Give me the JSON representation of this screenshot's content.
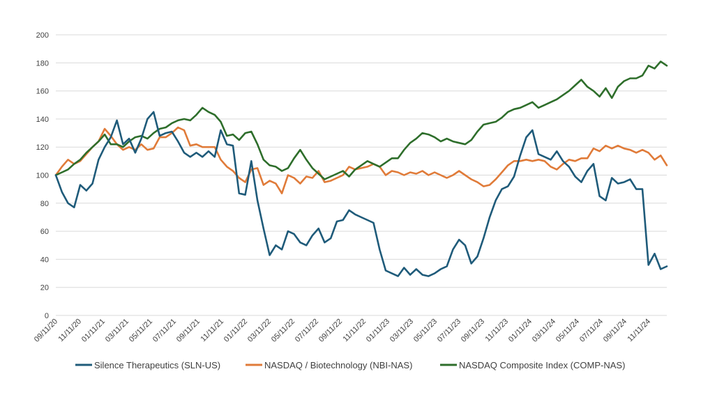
{
  "chart_data": {
    "type": "line",
    "title": "",
    "xlabel": "",
    "ylabel": "",
    "ylim": [
      0,
      200
    ],
    "yticks": [
      0,
      20,
      40,
      60,
      80,
      100,
      120,
      140,
      160,
      180,
      200
    ],
    "grid": true,
    "legend_position": "bottom",
    "x_tick_labels": [
      "09/11/20",
      "11/11/20",
      "01/11/21",
      "03/11/21",
      "05/11/21",
      "07/11/21",
      "09/11/21",
      "11/11/21",
      "01/11/22",
      "03/11/22",
      "05/11/22",
      "07/11/22",
      "09/11/22",
      "11/11/22",
      "01/11/23",
      "03/11/23",
      "05/11/23",
      "07/11/23",
      "09/11/23",
      "11/11/23",
      "01/11/24",
      "03/11/24",
      "05/11/24",
      "07/11/24",
      "09/11/24",
      "11/11/24"
    ],
    "series": [
      {
        "name": "Silence Therapeutics (SLN-US)",
        "color": "#1f5b7a",
        "values": [
          100,
          88,
          80,
          77,
          93,
          89,
          94,
          111,
          120,
          127,
          139,
          122,
          126,
          116,
          126,
          140,
          145,
          128,
          130,
          131,
          124,
          116,
          113,
          116,
          113,
          117,
          113,
          132,
          122,
          121,
          87,
          86,
          110,
          82,
          62,
          43,
          50,
          47,
          60,
          58,
          52,
          50,
          57,
          62,
          52,
          55,
          67,
          68,
          75,
          72,
          70,
          68,
          66,
          47,
          32,
          30,
          28,
          34,
          29,
          33,
          29,
          28,
          30,
          33,
          35,
          47,
          54,
          50,
          37,
          42,
          55,
          70,
          82,
          90,
          92,
          99,
          114,
          127,
          132,
          115,
          113,
          111,
          117,
          110,
          106,
          99,
          95,
          103,
          108,
          85,
          82,
          98,
          94,
          95,
          97,
          90,
          90,
          36,
          44,
          33,
          35
        ]
      },
      {
        "name": "NASDAQ / Biotechnology (NBI-NAS)",
        "color": "#e07b39",
        "values": [
          100,
          106,
          111,
          108,
          110,
          115,
          120,
          124,
          133,
          128,
          122,
          118,
          120,
          118,
          122,
          118,
          119,
          127,
          127,
          130,
          134,
          132,
          121,
          122,
          120,
          120,
          120,
          111,
          106,
          103,
          98,
          95,
          104,
          105,
          93,
          96,
          94,
          87,
          100,
          98,
          94,
          99,
          98,
          103,
          95,
          96,
          98,
          100,
          106,
          104,
          105,
          106,
          108,
          106,
          100,
          103,
          102,
          100,
          102,
          101,
          103,
          100,
          102,
          100,
          98,
          100,
          103,
          100,
          97,
          95,
          92,
          93,
          97,
          102,
          107,
          110,
          110,
          111,
          110,
          111,
          110,
          106,
          104,
          108,
          111,
          110,
          112,
          112,
          119,
          117,
          121,
          119,
          121,
          119,
          118,
          116,
          118,
          116,
          111,
          114,
          107
        ]
      },
      {
        "name": "NASDAQ Composite Index (COMP-NAS)",
        "color": "#2e6e2b",
        "values": [
          100,
          102,
          104,
          108,
          111,
          116,
          120,
          124,
          129,
          122,
          122,
          120,
          124,
          127,
          128,
          126,
          130,
          133,
          134,
          137,
          139,
          140,
          139,
          143,
          148,
          145,
          143,
          138,
          128,
          129,
          125,
          130,
          131,
          122,
          111,
          107,
          106,
          103,
          105,
          112,
          118,
          111,
          105,
          101,
          97,
          99,
          101,
          103,
          99,
          104,
          107,
          110,
          108,
          106,
          109,
          112,
          112,
          118,
          123,
          126,
          130,
          129,
          127,
          124,
          126,
          124,
          123,
          122,
          125,
          131,
          136,
          137,
          138,
          141,
          145,
          147,
          148,
          150,
          152,
          148,
          150,
          152,
          154,
          157,
          160,
          164,
          168,
          163,
          160,
          156,
          162,
          155,
          163,
          167,
          169,
          169,
          171,
          178,
          176,
          181,
          178
        ]
      }
    ]
  }
}
